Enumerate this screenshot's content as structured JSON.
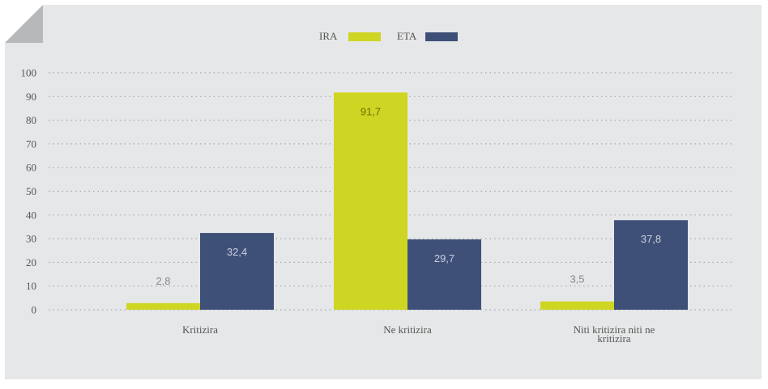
{
  "chart_data": {
    "type": "bar",
    "categories": [
      "Kritizira",
      "Ne kritizira",
      "Niti kritizira niti ne kritizira"
    ],
    "series": [
      {
        "name": "IRA",
        "color": "#cfd523",
        "values": [
          2.8,
          91.7,
          3.5
        ],
        "labels": [
          "2,8",
          "91,7",
          "3,5"
        ]
      },
      {
        "name": "ETA",
        "color": "#3f5078",
        "values": [
          32.4,
          29.7,
          37.8
        ],
        "labels": [
          "32,4",
          "29,7",
          "37,8"
        ]
      }
    ],
    "ylim": [
      0,
      100
    ],
    "yticks": [
      0,
      10,
      20,
      30,
      40,
      50,
      60,
      70,
      80,
      90,
      100
    ],
    "grid": true,
    "legend_position": "top-center",
    "title": "",
    "xlabel": "",
    "ylabel": ""
  }
}
